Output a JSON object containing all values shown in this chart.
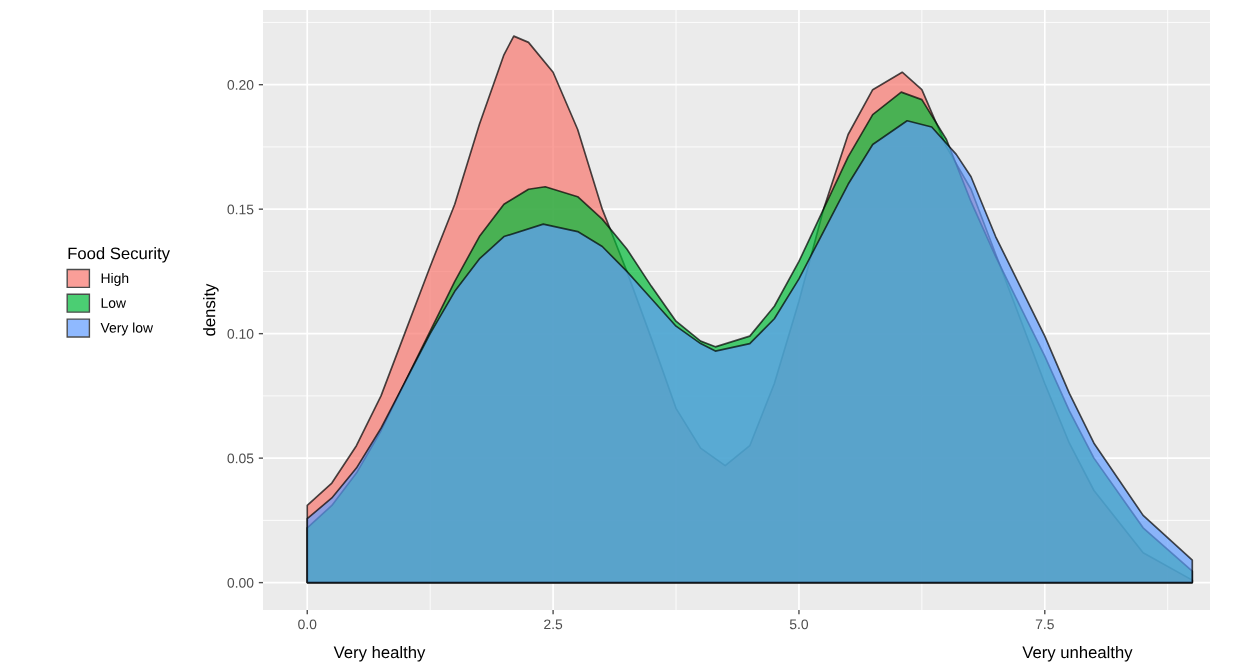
{
  "chart_data": {
    "type": "area",
    "ylabel": "density",
    "legend_title": "Food Security",
    "legend": "left",
    "grid": true,
    "xlim": [
      -0.45,
      9.18
    ],
    "ylim": [
      -0.011,
      0.23
    ],
    "xticks": [
      {
        "value": 0,
        "label": "0.0"
      },
      {
        "value": 2.5,
        "label": "2.5"
      },
      {
        "value": 5,
        "label": "5.0"
      },
      {
        "value": 7.5,
        "label": "7.5"
      }
    ],
    "yticks": [
      {
        "value": 0,
        "label": "0.00"
      },
      {
        "value": 0.05,
        "label": "0.05"
      },
      {
        "value": 0.1,
        "label": "0.10"
      },
      {
        "value": 0.15,
        "label": "0.15"
      },
      {
        "value": 0.2,
        "label": "0.20"
      }
    ],
    "annotations": [
      "Very healthy",
      "Very unhealthy"
    ],
    "series": [
      {
        "name": "High",
        "color": "#f8766d",
        "x": [
          0,
          0.25,
          0.5,
          0.75,
          1.0,
          1.25,
          1.5,
          1.75,
          2.0,
          2.1,
          2.25,
          2.5,
          2.75,
          3.0,
          3.25,
          3.5,
          3.75,
          4.0,
          4.25,
          4.5,
          4.75,
          5.0,
          5.25,
          5.5,
          5.75,
          6.05,
          6.25,
          6.5,
          6.75,
          7.0,
          7.25,
          7.5,
          7.75,
          8.0,
          8.5,
          9.0
        ],
        "values": [
          0.031,
          0.04,
          0.055,
          0.075,
          0.101,
          0.127,
          0.152,
          0.184,
          0.212,
          0.2195,
          0.217,
          0.205,
          0.182,
          0.15,
          0.125,
          0.098,
          0.07,
          0.054,
          0.047,
          0.055,
          0.08,
          0.113,
          0.15,
          0.18,
          0.198,
          0.205,
          0.198,
          0.175,
          0.158,
          0.132,
          0.106,
          0.08,
          0.056,
          0.037,
          0.012,
          0.001
        ]
      },
      {
        "name": "Low",
        "color": "#00ba38",
        "x": [
          0,
          0.25,
          0.5,
          0.75,
          1.0,
          1.25,
          1.5,
          1.75,
          2.0,
          2.25,
          2.42,
          2.75,
          3.0,
          3.25,
          3.5,
          3.75,
          4.0,
          4.15,
          4.5,
          4.75,
          5.0,
          5.25,
          5.5,
          5.75,
          6.04,
          6.25,
          6.5,
          6.75,
          7.0,
          7.25,
          7.5,
          7.75,
          8.0,
          8.5,
          9.0
        ],
        "values": [
          0.022,
          0.031,
          0.044,
          0.061,
          0.081,
          0.101,
          0.121,
          0.139,
          0.152,
          0.158,
          0.159,
          0.155,
          0.146,
          0.134,
          0.119,
          0.105,
          0.097,
          0.0947,
          0.099,
          0.111,
          0.129,
          0.15,
          0.171,
          0.188,
          0.197,
          0.194,
          0.178,
          0.153,
          0.131,
          0.111,
          0.091,
          0.069,
          0.05,
          0.022,
          0.0046
        ]
      },
      {
        "name": "Very low",
        "color": "#619cff",
        "x": [
          0,
          0.25,
          0.5,
          0.75,
          1.0,
          1.25,
          1.5,
          1.75,
          2.0,
          2.4,
          2.75,
          3.0,
          3.25,
          3.5,
          3.75,
          4.0,
          4.15,
          4.5,
          4.75,
          5.0,
          5.25,
          5.5,
          5.75,
          6.1,
          6.35,
          6.6,
          6.75,
          7.0,
          7.25,
          7.5,
          7.75,
          8.0,
          8.5,
          9.0
        ],
        "values": [
          0.0257,
          0.034,
          0.046,
          0.062,
          0.081,
          0.1,
          0.117,
          0.13,
          0.139,
          0.144,
          0.141,
          0.135,
          0.125,
          0.114,
          0.103,
          0.096,
          0.093,
          0.096,
          0.106,
          0.122,
          0.141,
          0.16,
          0.176,
          0.1855,
          0.183,
          0.172,
          0.163,
          0.139,
          0.119,
          0.099,
          0.076,
          0.056,
          0.027,
          0.009
        ]
      }
    ]
  }
}
